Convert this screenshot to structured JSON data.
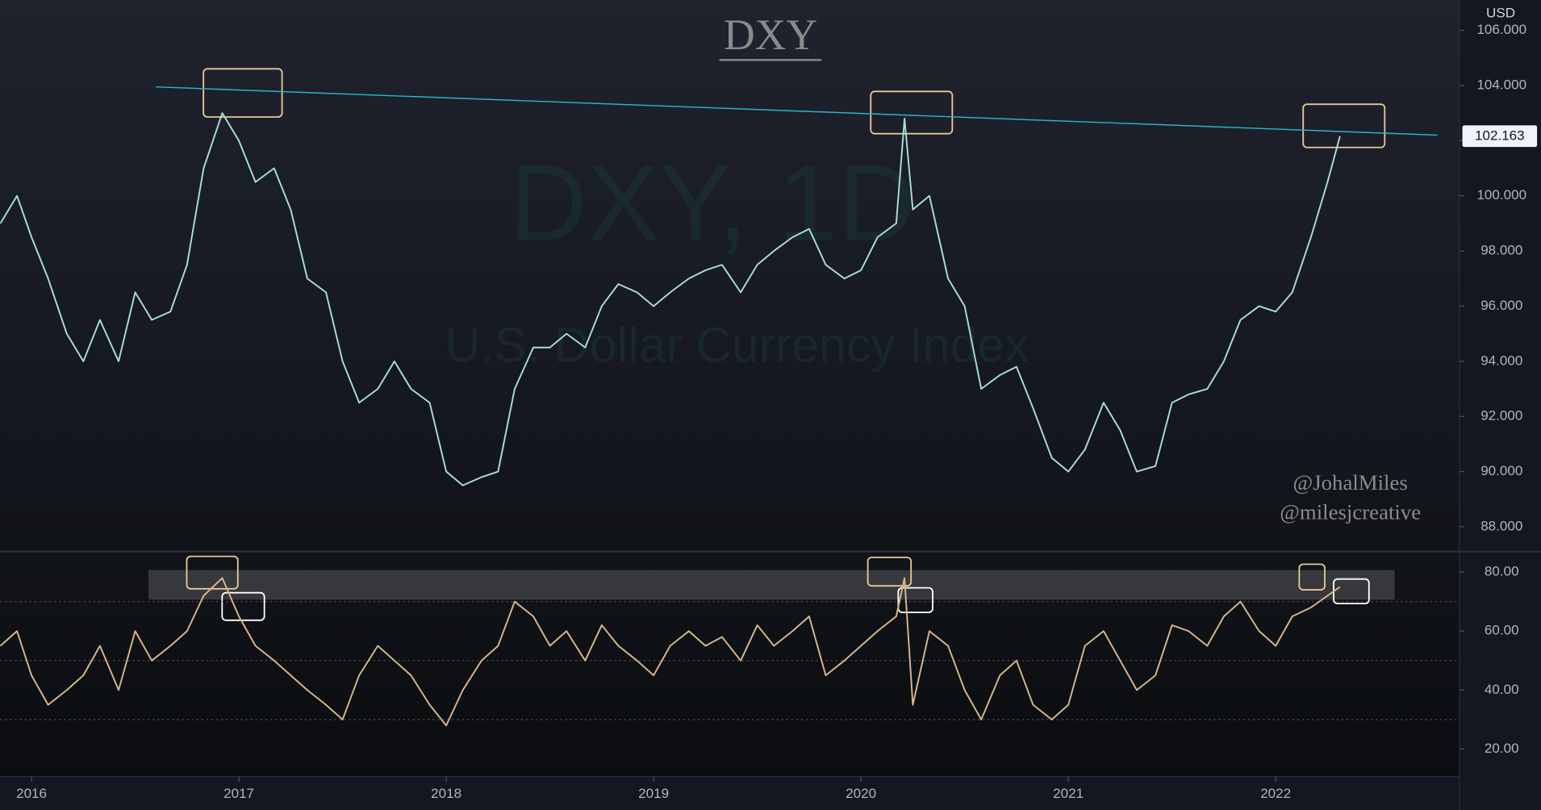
{
  "chart_data": [
    {
      "type": "line",
      "title": "DXY",
      "watermark": [
        "DXY, 1D",
        "U.S. Dollar Currency Index"
      ],
      "currency": "USD",
      "annotations": [
        "@JohalMiles",
        "@milesjcreative"
      ],
      "color": "#a9ddd8",
      "x": [
        2015.85,
        2015.93,
        2016.0,
        2016.08,
        2016.17,
        2016.25,
        2016.33,
        2016.42,
        2016.5,
        2016.58,
        2016.67,
        2016.75,
        2016.83,
        2016.92,
        2017.0,
        2017.08,
        2017.17,
        2017.25,
        2017.33,
        2017.42,
        2017.5,
        2017.58,
        2017.67,
        2017.75,
        2017.83,
        2017.92,
        2018.0,
        2018.08,
        2018.17,
        2018.25,
        2018.33,
        2018.42,
        2018.5,
        2018.58,
        2018.67,
        2018.75,
        2018.83,
        2018.92,
        2019.0,
        2019.08,
        2019.17,
        2019.25,
        2019.33,
        2019.42,
        2019.5,
        2019.58,
        2019.67,
        2019.75,
        2019.83,
        2019.92,
        2020.0,
        2020.08,
        2020.17,
        2020.21,
        2020.25,
        2020.33,
        2020.42,
        2020.5,
        2020.58,
        2020.67,
        2020.75,
        2020.83,
        2020.92,
        2021.0,
        2021.08,
        2021.17,
        2021.25,
        2021.33,
        2021.42,
        2021.5,
        2021.58,
        2021.67,
        2021.75,
        2021.83,
        2021.92,
        2022.0,
        2022.08,
        2022.17,
        2022.25,
        2022.31
      ],
      "values": [
        99,
        100,
        98.5,
        97,
        95,
        94,
        95.5,
        94,
        96.5,
        95.5,
        95.8,
        97.5,
        101,
        103,
        102,
        100.5,
        101,
        99.5,
        97,
        96.5,
        94,
        92.5,
        93,
        94,
        93,
        92.5,
        90,
        89.5,
        89.8,
        90,
        93,
        94.5,
        94.5,
        95,
        94.5,
        96,
        96.8,
        96.5,
        96,
        96.5,
        97,
        97.3,
        97.5,
        96.5,
        97.5,
        98,
        98.5,
        98.8,
        97.5,
        97,
        97.3,
        98.5,
        99,
        102.8,
        99.5,
        100,
        97,
        96,
        93,
        93.5,
        93.8,
        92.3,
        90.5,
        90,
        90.8,
        92.5,
        91.5,
        90,
        90.2,
        92.5,
        92.8,
        93,
        94,
        95.5,
        96,
        95.8,
        96.5,
        98.5,
        100.5,
        102.163
      ],
      "trendline": {
        "x": [
          2016.6,
          2022.78
        ],
        "y": [
          103.95,
          102.2
        ],
        "color": "#2bb3c9"
      },
      "xlim": [
        2015.848,
        2022.886
      ],
      "ylim": [
        87.14,
        107.1
      ],
      "yticks": [
        {
          "value": 88,
          "label": "88.000"
        },
        {
          "value": 90,
          "label": "90.000"
        },
        {
          "value": 92,
          "label": "92.000"
        },
        {
          "value": 94,
          "label": "94.000"
        },
        {
          "value": 96,
          "label": "96.000"
        },
        {
          "value": 98,
          "label": "98.000"
        },
        {
          "value": 100,
          "label": "100.000"
        },
        {
          "value": 102,
          "label": "102.000"
        },
        {
          "value": 104,
          "label": "104.000"
        },
        {
          "value": 106,
          "label": "106.000"
        }
      ]
    },
    {
      "type": "line",
      "color": "#d9b68c",
      "values": [
        55,
        60,
        45,
        35,
        40,
        45,
        55,
        40,
        60,
        50,
        55,
        60,
        72,
        78,
        65,
        55,
        50,
        45,
        40,
        35,
        30,
        45,
        55,
        50,
        45,
        35,
        28,
        40,
        50,
        55,
        70,
        65,
        55,
        60,
        50,
        62,
        55,
        50,
        45,
        55,
        60,
        55,
        58,
        50,
        62,
        55,
        60,
        65,
        45,
        50,
        55,
        60,
        65,
        78,
        35,
        60,
        55,
        40,
        30,
        45,
        50,
        35,
        30,
        35,
        55,
        60,
        50,
        40,
        45,
        62,
        60,
        55,
        65,
        70,
        60,
        55,
        65,
        68,
        72,
        75
      ],
      "levels": [
        70,
        50,
        30
      ],
      "ylim": [
        10.67,
        86.67
      ],
      "yticks": [
        {
          "value": 20,
          "label": "20.00"
        },
        {
          "value": 40,
          "label": "40.00"
        },
        {
          "value": 60,
          "label": "60.00"
        },
        {
          "value": 80,
          "label": "80.00"
        }
      ],
      "xticks": [
        2016,
        2017,
        2018,
        2019,
        2020,
        2021,
        2022
      ]
    }
  ]
}
